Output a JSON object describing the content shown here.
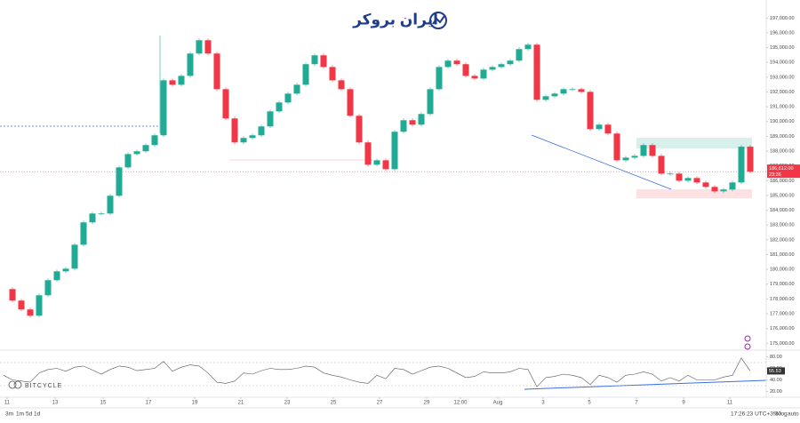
{
  "chart_data": [
    {
      "type": "candlestick",
      "values": [
        178670,
        177890,
        177290,
        176870,
        178250,
        179270,
        179870,
        180050,
        181670,
        183180,
        183780,
        183780,
        184980,
        186900,
        187800,
        187990,
        188410,
        189070,
        192790,
        192490,
        193090,
        194600,
        195500,
        194600,
        192190,
        190210,
        188590,
        188890,
        189070,
        189670,
        190690,
        191290,
        191890,
        192490,
        193880,
        194480,
        193690,
        192790,
        192190,
        190390,
        188590,
        187080,
        187380,
        186780,
        189310,
        190090,
        189790,
        190510,
        192190,
        193690,
        194120,
        193880,
        193090,
        192910,
        193510,
        193690,
        193880,
        194120,
        194900,
        195200,
        191470,
        191710,
        191890,
        192190,
        192190,
        192010,
        189490,
        189790,
        189190,
        187380,
        187560,
        187680,
        188410,
        187680,
        186480,
        186480,
        186000,
        186180,
        185880,
        185580,
        185280,
        185400,
        185880,
        188300,
        186612
      ],
      "up_color": "#22ab94",
      "down_color": "#f23645",
      "xlim": [
        -0.4,
        85.6
      ],
      "xticks": [
        {
          "value": 0.4,
          "label": "11"
        },
        {
          "value": 5.8,
          "label": "13"
        },
        {
          "value": 11.2,
          "label": "15"
        },
        {
          "value": 16.3,
          "label": "17"
        },
        {
          "value": 21.5,
          "label": "19"
        },
        {
          "value": 26.7,
          "label": "21"
        },
        {
          "value": 31.9,
          "label": "23"
        },
        {
          "value": 37.1,
          "label": "25"
        },
        {
          "value": 42.3,
          "label": "27"
        },
        {
          "value": 47.6,
          "label": "29"
        },
        {
          "value": 51.4,
          "label": "12:00"
        },
        {
          "value": 55.6,
          "label": "Aug"
        },
        {
          "value": 60.7,
          "label": "3"
        },
        {
          "value": 65.9,
          "label": "5"
        },
        {
          "value": 71.2,
          "label": "7"
        },
        {
          "value": 76.5,
          "label": "9"
        },
        {
          "value": 81.7,
          "label": "11"
        }
      ],
      "ylim": [
        174600,
        197200
      ],
      "yticks": [
        {
          "value": 175000,
          "label": "175,000.00"
        },
        {
          "value": 176000,
          "label": "176,000.00"
        },
        {
          "value": 177000,
          "label": "177,000.00"
        },
        {
          "value": 178000,
          "label": "178,000.00"
        },
        {
          "value": 179000,
          "label": "179,000.00"
        },
        {
          "value": 180000,
          "label": "180,000.00"
        },
        {
          "value": 181000,
          "label": "181,000.00"
        },
        {
          "value": 182000,
          "label": "182,000.00"
        },
        {
          "value": 183000,
          "label": "183,000.00"
        },
        {
          "value": 184000,
          "label": "184,000.00"
        },
        {
          "value": 185000,
          "label": "185,000.00"
        },
        {
          "value": 186000,
          "label": "186,000.00"
        },
        {
          "value": 187000,
          "label": "187,000.00"
        },
        {
          "value": 188000,
          "label": "188,000.00"
        },
        {
          "value": 189000,
          "label": "189,000.00"
        },
        {
          "value": 190000,
          "label": "190,000.00"
        },
        {
          "value": 191000,
          "label": "191,000.00"
        },
        {
          "value": 192000,
          "label": "192,000.00"
        },
        {
          "value": 193000,
          "label": "193,000.00"
        },
        {
          "value": 194000,
          "label": "194,000.00"
        },
        {
          "value": 195000,
          "label": "195,000.00"
        },
        {
          "value": 196000,
          "label": "196,000.00"
        },
        {
          "value": 197000,
          "label": "197,000.00"
        }
      ],
      "last_price": {
        "value": 186612,
        "label": "186,612.00"
      },
      "countdown": "23:36",
      "grid": false
    },
    {
      "type": "line",
      "values": [
        48,
        40,
        38,
        36,
        52,
        58,
        60,
        55,
        62,
        64,
        57,
        50,
        58,
        64,
        62,
        56,
        58,
        60,
        72,
        55,
        62,
        66,
        64,
        52,
        36,
        34,
        38,
        52,
        50,
        56,
        60,
        58,
        58,
        60,
        64,
        62,
        52,
        48,
        45,
        40,
        36,
        34,
        48,
        42,
        60,
        58,
        50,
        56,
        62,
        64,
        60,
        52,
        44,
        46,
        54,
        52,
        52,
        54,
        60,
        58,
        28,
        44,
        46,
        50,
        48,
        44,
        32,
        48,
        44,
        36,
        48,
        50,
        54,
        50,
        38,
        44,
        38,
        48,
        40,
        40,
        40,
        45,
        48,
        78,
        55.53
      ],
      "color": "#555555",
      "xlim": [
        -0.4,
        85.6
      ],
      "ylim": [
        10,
        90
      ],
      "yticks": [
        {
          "value": 80,
          "label": "80.00"
        },
        {
          "value": 60,
          "label": "60.00"
        },
        {
          "value": 40,
          "label": "40.00"
        },
        {
          "value": 20,
          "label": "20.00"
        }
      ],
      "hlines": [
        70,
        30
      ]
    }
  ],
  "logo": "ایران بروکر",
  "watermark": "BITCYCLE",
  "toolbar": {
    "ranges": [
      "3m",
      "1m",
      "5d",
      "1d"
    ],
    "clock": "17:26:23 UTC+3:30",
    "percent": "%",
    "log": "log",
    "auto": "auto"
  }
}
